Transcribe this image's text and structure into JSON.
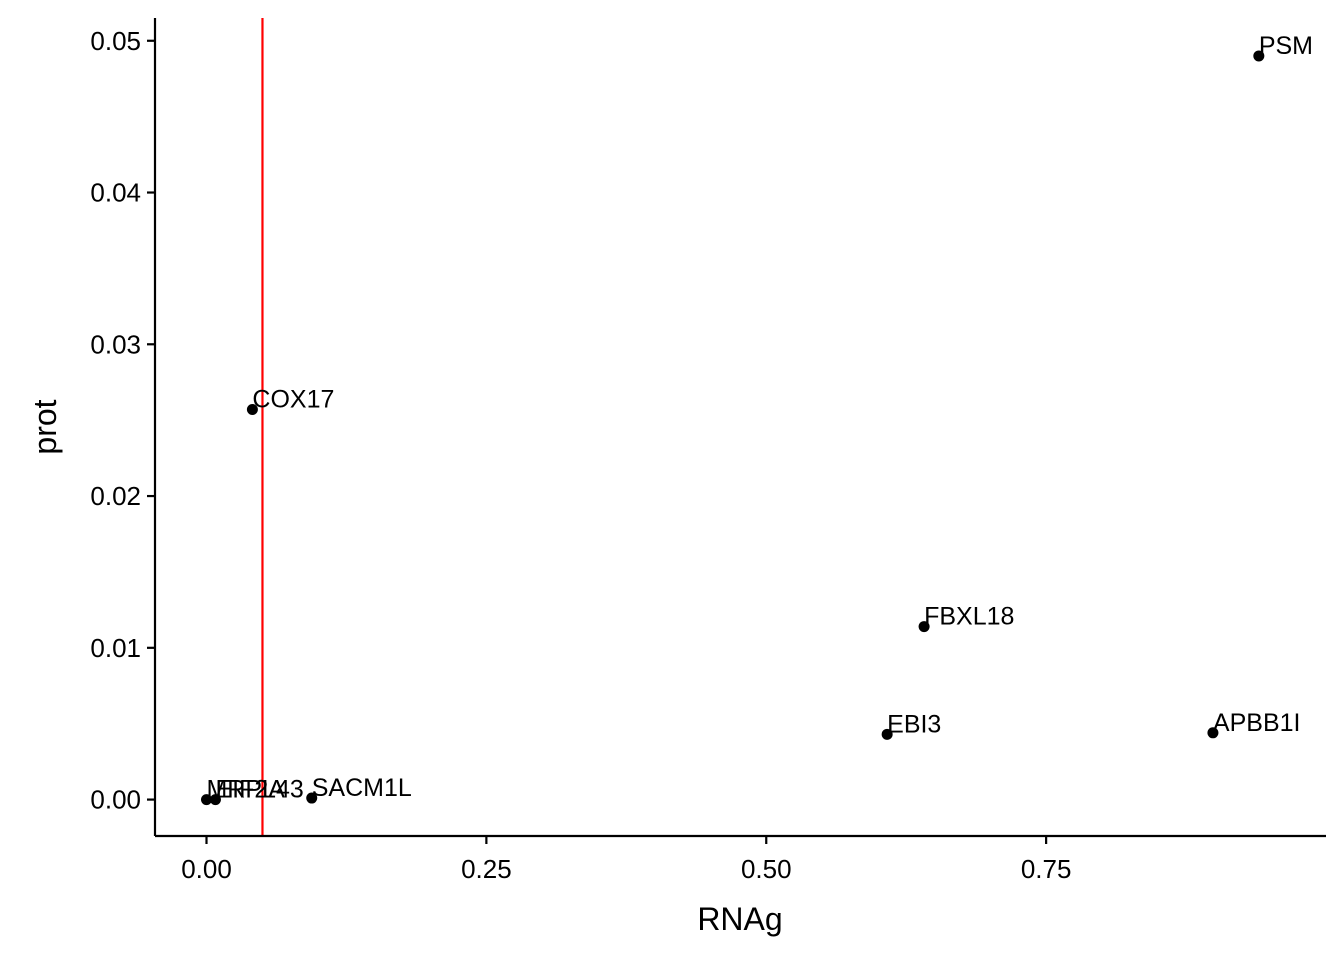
{
  "chart_data": {
    "type": "scatter",
    "xlabel": "RNAg",
    "ylabel": "prot",
    "xlim": [
      -0.046,
      1.0
    ],
    "ylim": [
      -0.0024,
      0.0515
    ],
    "x_ticks": [
      0.0,
      0.25,
      0.5,
      0.75
    ],
    "x_tick_labels": [
      "0.00",
      "0.25",
      "0.50",
      "0.75"
    ],
    "y_ticks": [
      0.0,
      0.01,
      0.02,
      0.03,
      0.04,
      0.05
    ],
    "y_tick_labels": [
      "0.00",
      "0.01",
      "0.02",
      "0.03",
      "0.04",
      "0.05"
    ],
    "grid": false,
    "vline": {
      "x": 0.05,
      "color": "#ff0000"
    },
    "point_color": "#000000",
    "points": [
      {
        "label": "PSM",
        "x": 0.94,
        "y": 0.049
      },
      {
        "label": "COX17",
        "x": 0.041,
        "y": 0.0257
      },
      {
        "label": "FBXL18",
        "x": 0.641,
        "y": 0.0114
      },
      {
        "label": "EBI3",
        "x": 0.608,
        "y": 0.0043
      },
      {
        "label": "APBB1I",
        "x": 0.899,
        "y": 0.0044
      },
      {
        "label": "SACM1L",
        "x": 0.094,
        "y": 0.0001
      },
      {
        "label": "MRPL43",
        "x": 0.0,
        "y": 0.0
      },
      {
        "label": "EIF2A",
        "x": 0.008,
        "y": 0.0
      }
    ]
  }
}
